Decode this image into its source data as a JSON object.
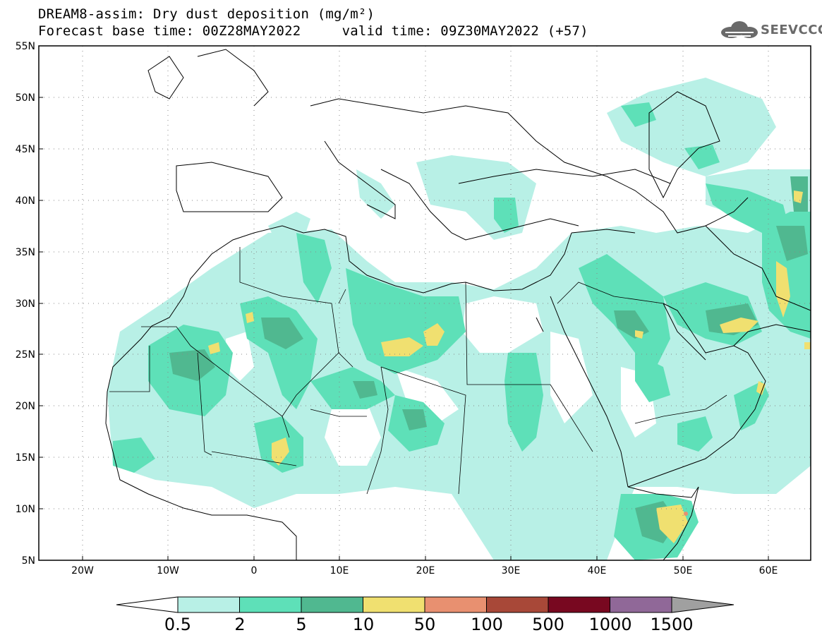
{
  "title": {
    "line1": "DREAM8-assim: Dry dust deposition (mg/m²)",
    "line2": "Forecast base time: 00Z28MAY2022     valid time: 09Z30MAY2022 (+57)"
  },
  "logo": {
    "text": "SEEVCCC",
    "icon": "cloud-icon"
  },
  "map": {
    "lat_labels": [
      "55N",
      "50N",
      "45N",
      "40N",
      "35N",
      "30N",
      "25N",
      "20N",
      "15N",
      "10N",
      "5N"
    ],
    "lon_labels": [
      "20W",
      "10W",
      "0",
      "10E",
      "20E",
      "30E",
      "40E",
      "50E",
      "60E"
    ],
    "lon_range": [
      -25,
      65
    ],
    "lat_range": [
      5,
      55
    ],
    "grid": "dotted"
  },
  "colorbar": {
    "labels": [
      "0.5",
      "2",
      "5",
      "10",
      "50",
      "100",
      "500",
      "1000",
      "1500"
    ],
    "colors": [
      "#b8f0e6",
      "#5ee0b8",
      "#50b890",
      "#f0e070",
      "#e89070",
      "#a84838",
      "#780820",
      "#906898",
      "#a0a0a0"
    ],
    "under_color": "#ffffff"
  },
  "colors": {
    "land_background": "#ffffff",
    "coast": "#000000"
  }
}
